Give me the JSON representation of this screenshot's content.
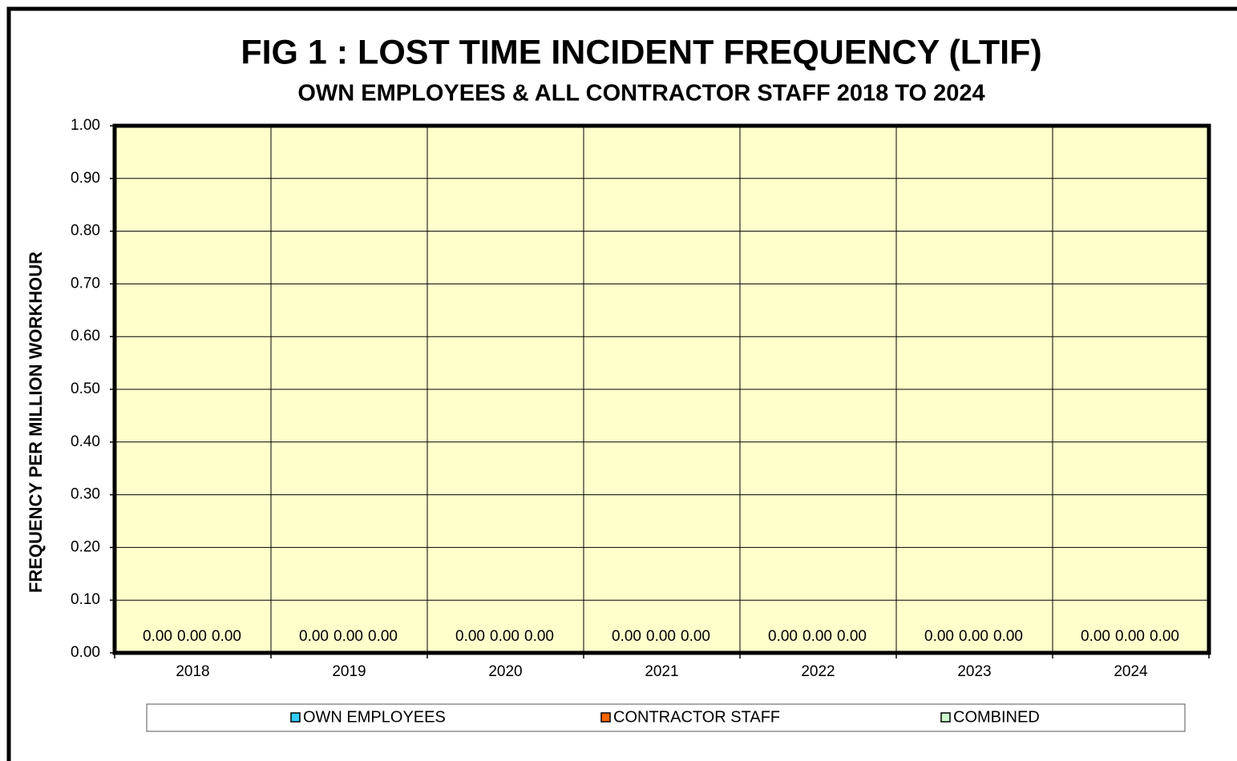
{
  "chart_data": {
    "type": "bar",
    "title": "FIG 1 : LOST TIME INCIDENT FREQUENCY (LTIF)",
    "subtitle": "OWN EMPLOYEES & ALL CONTRACTOR STAFF 2018 TO 2024",
    "y_label": "FREQUENCY PER MILLION WORKHOUR",
    "categories": [
      "2018",
      "2019",
      "2020",
      "2021",
      "2022",
      "2023",
      "2024"
    ],
    "series": [
      {
        "name": "OWN EMPLOYEES",
        "color": "#33ccff",
        "values": [
          0,
          0,
          0,
          0,
          0,
          0,
          0
        ],
        "value_labels": [
          "0.00",
          "0.00",
          "0.00",
          "0.00",
          "0.00",
          "0.00",
          "0.00"
        ]
      },
      {
        "name": "CONTRACTOR STAFF",
        "color": "#ff6600",
        "values": [
          0,
          0,
          0,
          0,
          0,
          0,
          0
        ],
        "value_labels": [
          "0.00",
          "0.00",
          "0.00",
          "0.00",
          "0.00",
          "0.00",
          "0.00"
        ]
      },
      {
        "name": "COMBINED",
        "color": "#ccffcc",
        "values": [
          0,
          0,
          0,
          0,
          0,
          0,
          0
        ],
        "value_labels": [
          "0.00",
          "0.00",
          "0.00",
          "0.00",
          "0.00",
          "0.00",
          "0.00"
        ]
      }
    ],
    "ylim": [
      0,
      1
    ],
    "yticks": [
      {
        "value": 0,
        "label": "0.00"
      },
      {
        "value": 0.1,
        "label": "0.10"
      },
      {
        "value": 0.2,
        "label": "0.20"
      },
      {
        "value": 0.3,
        "label": "0.30"
      },
      {
        "value": 0.4,
        "label": "0.40"
      },
      {
        "value": 0.5,
        "label": "0.50"
      },
      {
        "value": 0.6,
        "label": "0.60"
      },
      {
        "value": 0.7,
        "label": "0.70"
      },
      {
        "value": 0.8,
        "label": "0.80"
      },
      {
        "value": 0.9,
        "label": "0.90"
      },
      {
        "value": 1,
        "label": "1.00"
      }
    ],
    "grid": true,
    "plot_background": "#ffffcc",
    "legend": "bottom"
  }
}
